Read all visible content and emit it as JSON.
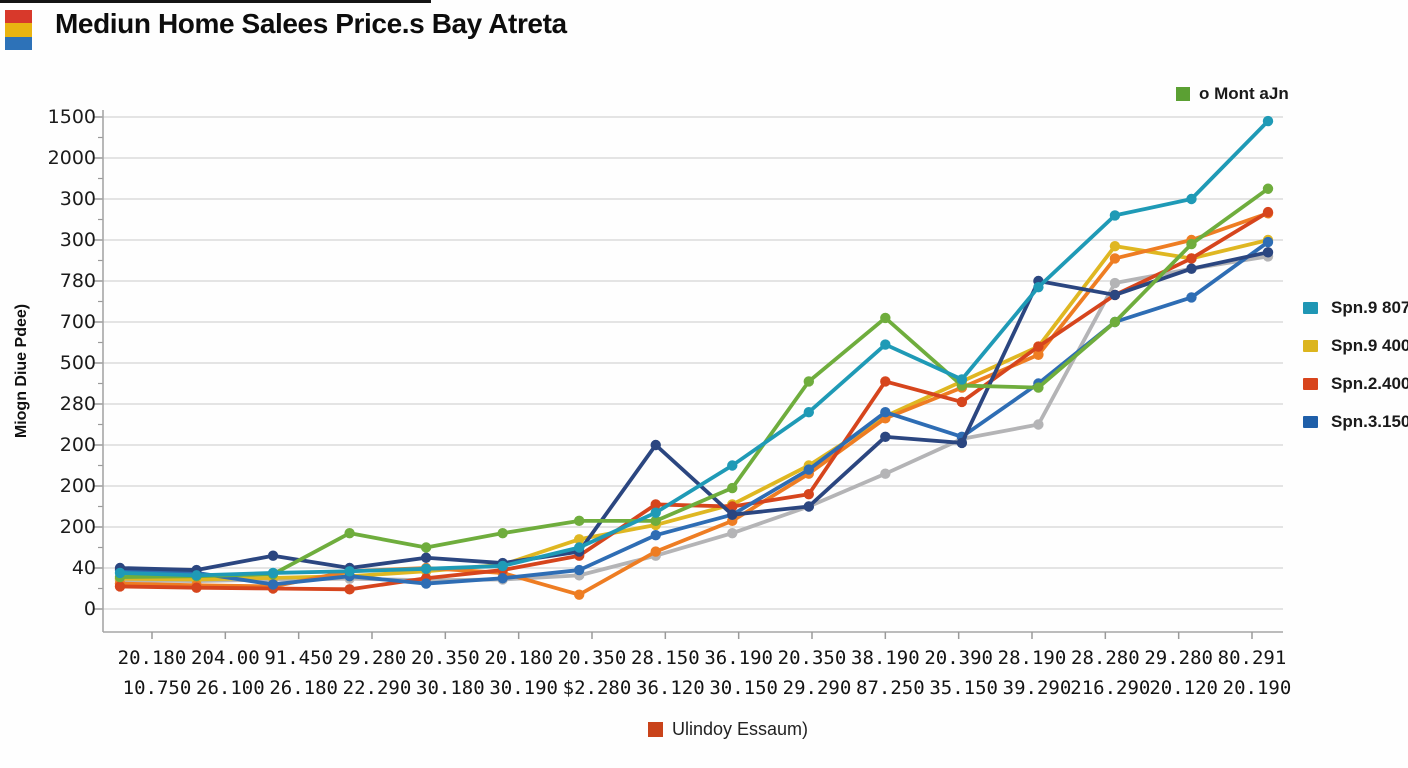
{
  "header": {
    "title": "Mediun Home Salees Price.s Bay Atreta",
    "icon_colors": [
      "#d8392b",
      "#e9b411",
      "#2d72b8"
    ]
  },
  "top_legend": {
    "label": "o Mont aJn",
    "color": "#5ba033"
  },
  "bottom_legend": {
    "label": "Ulindoy Essaum)",
    "color": "#c9431a"
  },
  "right_legend": [
    {
      "label": "Spn.9 807",
      "color": "#1f96b4"
    },
    {
      "label": "Spn.9 400",
      "color": "#dcb51e"
    },
    {
      "label": "Spn.2.400",
      "color": "#d8441c"
    },
    {
      "label": "Spn.3.150",
      "color": "#1f5fa9"
    }
  ],
  "chart_data": {
    "type": "line",
    "title": "Mediun Home Salees Price.s Bay Atreta",
    "xlabel": "",
    "ylabel": "Miogn Diue Pdee)",
    "grid": true,
    "legend_position": "right",
    "ylim": [
      0,
      1200
    ],
    "value_per_gridline": 100,
    "y_tick_labels": [
      "1500",
      "2000",
      "300",
      "300",
      "780",
      "700",
      "500",
      "280",
      "200",
      "200",
      "200",
      "40",
      "0"
    ],
    "x_tick_labels_row1": [
      "20.180",
      "204.00",
      "91.450",
      "29.280",
      "20.350",
      "20.180",
      "20.350",
      "28.150",
      "36.190",
      "20.350",
      "38.190",
      "20.390",
      "28.190",
      "28.280",
      "29.280",
      "80.291"
    ],
    "x_tick_labels_row2": [
      "10.750",
      "26.100",
      "26.180",
      "22.290",
      "30.180",
      "30.190",
      "$2.280",
      "36.120",
      "30.150",
      "29.290",
      "87.250",
      "35.150",
      "39.290",
      "216.290",
      "20.120",
      "20.190"
    ],
    "series": [
      {
        "name": "series-gray",
        "color": "#b4b4b6",
        "values": [
          70,
          68,
          72,
          74,
          70,
          72,
          82,
          130,
          185,
          250,
          330,
          415,
          450,
          795,
          830,
          860
        ]
      },
      {
        "name": "Spn.9 400",
        "color": "#dfb722",
        "values": [
          74,
          72,
          76,
          80,
          92,
          108,
          170,
          205,
          255,
          350,
          470,
          555,
          640,
          885,
          855,
          900
        ]
      },
      {
        "name": "Ulindoy Essaum)",
        "color": "#ee7d23",
        "values": [
          62,
          58,
          55,
          92,
          100,
          88,
          35,
          140,
          215,
          330,
          465,
          540,
          620,
          855,
          900,
          965
        ]
      },
      {
        "name": "Spn.2.400",
        "color": "#d6451d",
        "values": [
          55,
          52,
          50,
          48,
          75,
          95,
          130,
          255,
          250,
          280,
          555,
          505,
          640,
          766,
          855,
          968
        ]
      },
      {
        "name": "series-blue",
        "color": "#2e6db4",
        "values": [
          95,
          88,
          60,
          80,
          62,
          75,
          95,
          180,
          230,
          340,
          480,
          420,
          550,
          700,
          760,
          895
        ]
      },
      {
        "name": "Spn.3.150",
        "color": "#2b4680",
        "values": [
          100,
          95,
          130,
          100,
          125,
          112,
          140,
          400,
          230,
          250,
          420,
          405,
          800,
          766,
          830,
          870
        ]
      },
      {
        "name": "o Mont aJn",
        "color": "#6fad3d",
        "values": [
          78,
          80,
          85,
          185,
          150,
          185,
          215,
          215,
          295,
          555,
          710,
          545,
          540,
          700,
          890,
          1025
        ]
      },
      {
        "name": "Spn.9 807",
        "color": "#1f9ab6",
        "values": [
          88,
          82,
          88,
          92,
          98,
          105,
          150,
          235,
          350,
          480,
          645,
          560,
          785,
          960,
          1000,
          1190
        ]
      }
    ]
  }
}
